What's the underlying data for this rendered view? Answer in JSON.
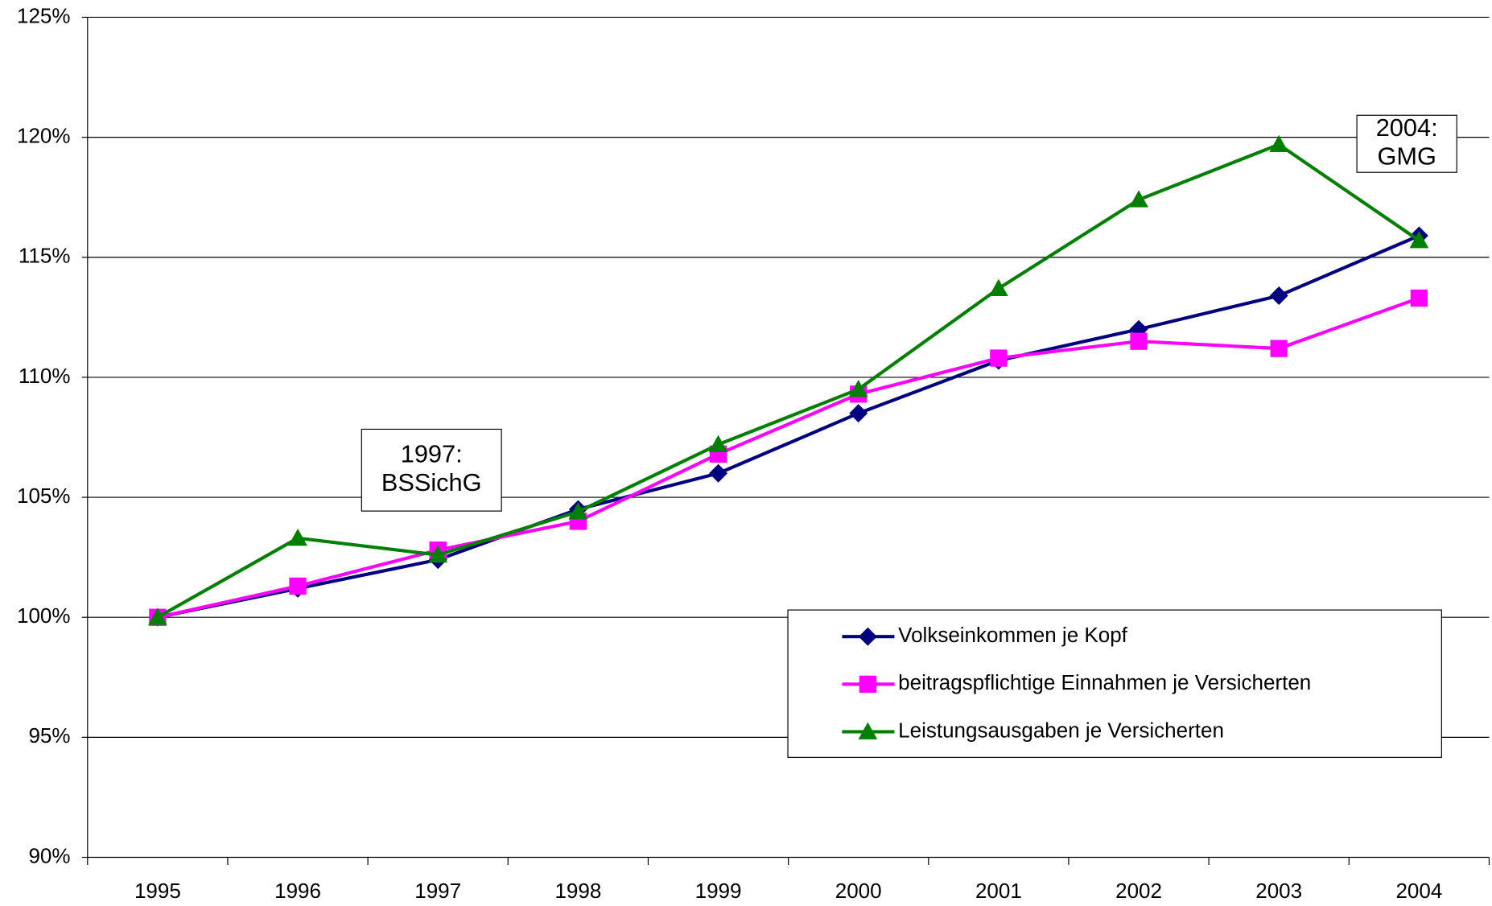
{
  "chart_data": {
    "type": "line",
    "categories": [
      "1995",
      "1996",
      "1997",
      "1998",
      "1999",
      "2000",
      "2001",
      "2002",
      "2003",
      "2004"
    ],
    "series": [
      {
        "name": "Volkseinkommen je Kopf",
        "color": "#000080",
        "marker": "diamond",
        "values": [
          100,
          101.2,
          102.4,
          104.5,
          106.0,
          108.5,
          110.7,
          112.0,
          113.4,
          115.9
        ]
      },
      {
        "name": "beitragspflichtige Einnahmen je Versicherten",
        "color": "#ff00ff",
        "marker": "square",
        "values": [
          100,
          101.3,
          102.8,
          104.0,
          106.8,
          109.3,
          110.8,
          111.5,
          111.2,
          113.3
        ]
      },
      {
        "name": "Leistungsausgaben je Versicherten",
        "color": "#008000",
        "marker": "triangle",
        "values": [
          100,
          103.3,
          102.6,
          104.4,
          107.2,
          109.5,
          113.7,
          117.4,
          119.7,
          115.7
        ]
      }
    ],
    "ylim": [
      90,
      125
    ],
    "yticks": [
      {
        "value": 90,
        "label": "90%"
      },
      {
        "value": 95,
        "label": "95%"
      },
      {
        "value": 100,
        "label": "100%"
      },
      {
        "value": 105,
        "label": "105%"
      },
      {
        "value": 110,
        "label": "110%"
      },
      {
        "value": 115,
        "label": "115%"
      },
      {
        "value": 120,
        "label": "120%"
      },
      {
        "value": 125,
        "label": "125%"
      }
    ],
    "grid": true,
    "legend": "lower right",
    "annotations": [
      {
        "lines": [
          "1997:",
          "BSSichG"
        ]
      },
      {
        "lines": [
          "2004:",
          "GMG"
        ]
      }
    ]
  }
}
